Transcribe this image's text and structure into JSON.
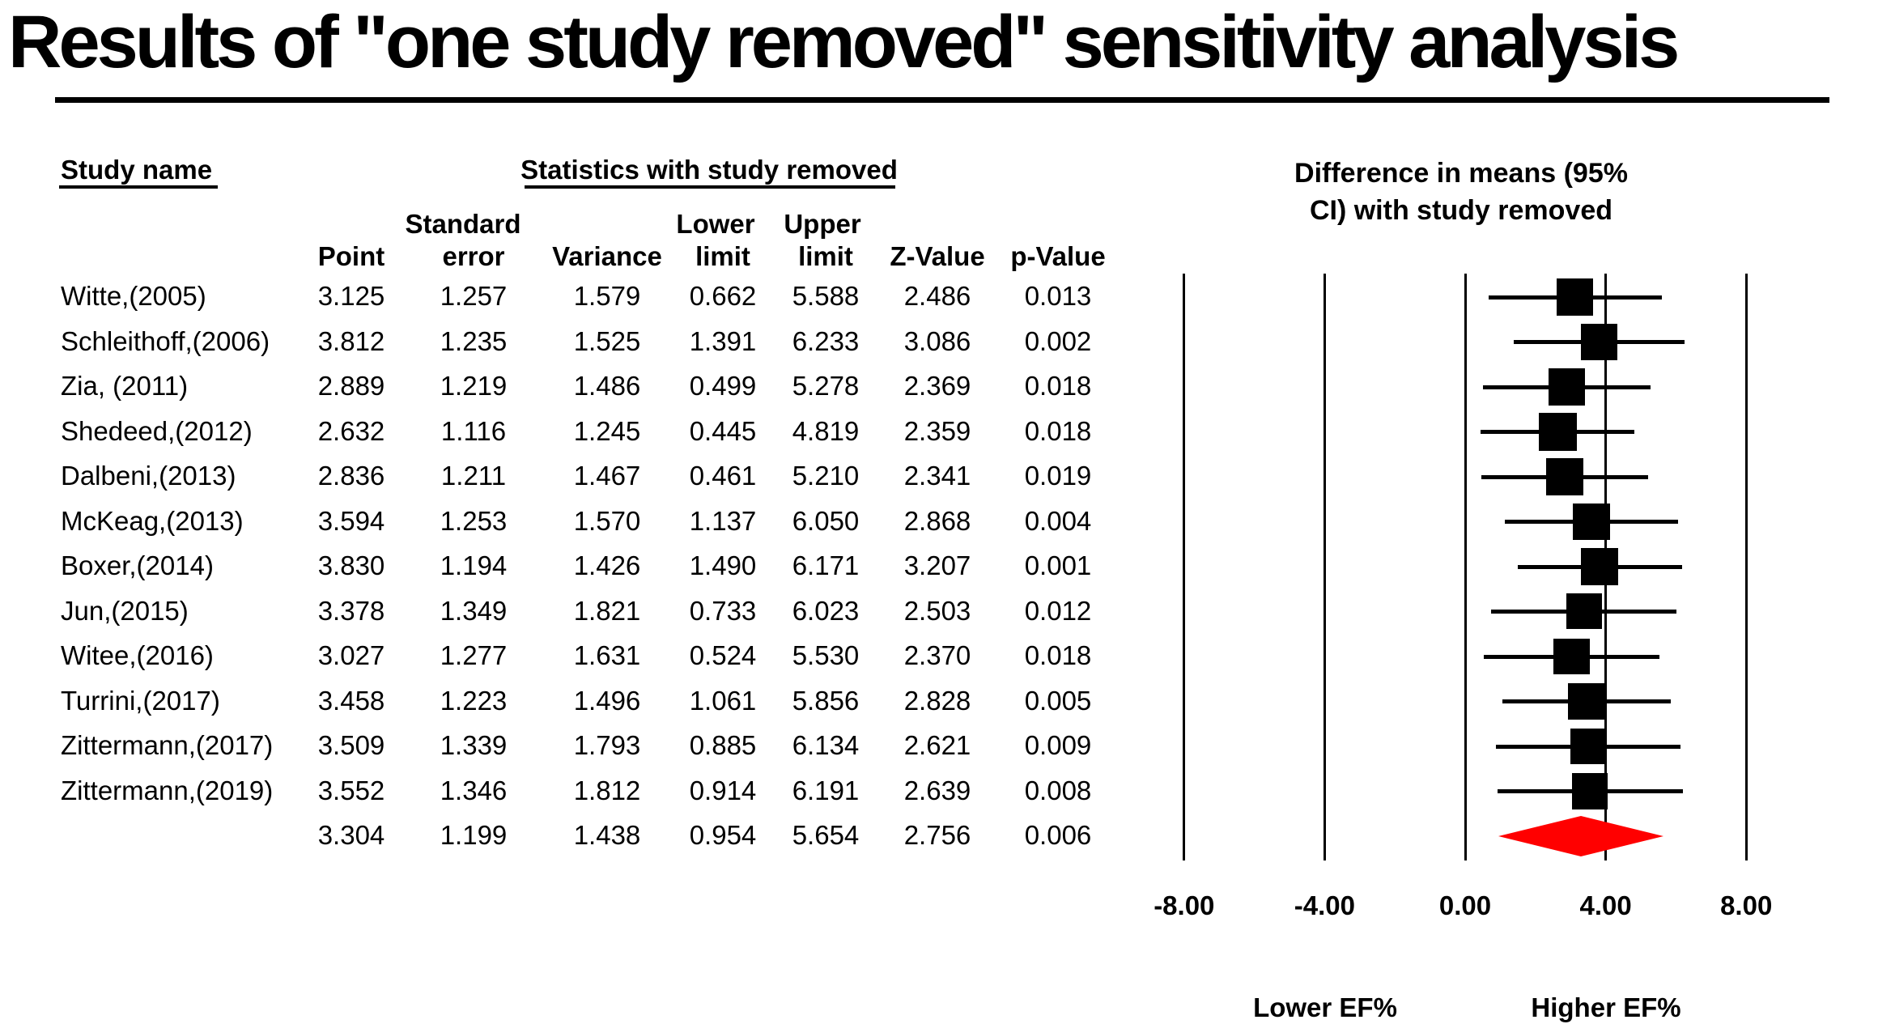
{
  "title": "Results of \"one study removed\" sensitivity analysis",
  "table": {
    "study_col_header": "Study name",
    "group_header": "Statistics with study removed",
    "sub_headers_top": {
      "standard": "Standard",
      "lower": "Lower",
      "upper": "Upper"
    },
    "sub_headers": {
      "point": "Point",
      "error": "error",
      "variance": "Variance",
      "lower_limit": "limit",
      "upper_limit": "limit",
      "z_value": "Z-Value",
      "p_value": "p-Value"
    }
  },
  "plot": {
    "header_line1": "Difference in means (95%",
    "header_line2": "CI) with study removed",
    "footer_left": "Lower EF%",
    "footer_right": "Higher EF%",
    "diamond_color": "#ff0000",
    "marker_color": "#000000"
  },
  "chart_data": {
    "type": "forest",
    "title": "Results of \"one study removed\" sensitivity analysis",
    "effect_label": "Difference in means (95% CI) with study removed",
    "xlim": [
      -8,
      8
    ],
    "axis_values": [
      -8,
      -4,
      0,
      4,
      8
    ],
    "axis_tick_labels": [
      "-8.00",
      "-4.00",
      "0.00",
      "4.00",
      "8.00"
    ],
    "direction_labels": {
      "left": "Lower EF%",
      "right": "Higher EF%"
    },
    "columns": [
      "Point",
      "Standard error",
      "Variance",
      "Lower limit",
      "Upper limit",
      "Z-Value",
      "p-Value"
    ],
    "studies": [
      {
        "name": "Witte,(2005)",
        "point": 3.125,
        "se": 1.257,
        "variance": 1.579,
        "lower": 0.662,
        "upper": 5.588,
        "z": 2.486,
        "p": 0.013
      },
      {
        "name": "Schleithoff,(2006)",
        "point": 3.812,
        "se": 1.235,
        "variance": 1.525,
        "lower": 1.391,
        "upper": 6.233,
        "z": 3.086,
        "p": 0.002
      },
      {
        "name": "Zia, (2011)",
        "point": 2.889,
        "se": 1.219,
        "variance": 1.486,
        "lower": 0.499,
        "upper": 5.278,
        "z": 2.369,
        "p": 0.018
      },
      {
        "name": "Shedeed,(2012)",
        "point": 2.632,
        "se": 1.116,
        "variance": 1.245,
        "lower": 0.445,
        "upper": 4.819,
        "z": 2.359,
        "p": 0.018
      },
      {
        "name": "Dalbeni,(2013)",
        "point": 2.836,
        "se": 1.211,
        "variance": 1.467,
        "lower": 0.461,
        "upper": 5.21,
        "z": 2.341,
        "p": 0.019
      },
      {
        "name": "McKeag,(2013)",
        "point": 3.594,
        "se": 1.253,
        "variance": 1.57,
        "lower": 1.137,
        "upper": 6.05,
        "z": 2.868,
        "p": 0.004
      },
      {
        "name": "Boxer,(2014)",
        "point": 3.83,
        "se": 1.194,
        "variance": 1.426,
        "lower": 1.49,
        "upper": 6.171,
        "z": 3.207,
        "p": 0.001
      },
      {
        "name": "Jun,(2015)",
        "point": 3.378,
        "se": 1.349,
        "variance": 1.821,
        "lower": 0.733,
        "upper": 6.023,
        "z": 2.503,
        "p": 0.012
      },
      {
        "name": "Witee,(2016)",
        "point": 3.027,
        "se": 1.277,
        "variance": 1.631,
        "lower": 0.524,
        "upper": 5.53,
        "z": 2.37,
        "p": 0.018
      },
      {
        "name": "Turrini,(2017)",
        "point": 3.458,
        "se": 1.223,
        "variance": 1.496,
        "lower": 1.061,
        "upper": 5.856,
        "z": 2.828,
        "p": 0.005
      },
      {
        "name": "Zittermann,(2017)",
        "point": 3.509,
        "se": 1.339,
        "variance": 1.793,
        "lower": 0.885,
        "upper": 6.134,
        "z": 2.621,
        "p": 0.009
      },
      {
        "name": "Zittermann,(2019)",
        "point": 3.552,
        "se": 1.346,
        "variance": 1.812,
        "lower": 0.914,
        "upper": 6.191,
        "z": 2.639,
        "p": 0.008
      }
    ],
    "summary": {
      "name": "",
      "point": 3.304,
      "se": 1.199,
      "variance": 1.438,
      "lower": 0.954,
      "upper": 5.654,
      "z": 2.756,
      "p": 0.006
    }
  }
}
